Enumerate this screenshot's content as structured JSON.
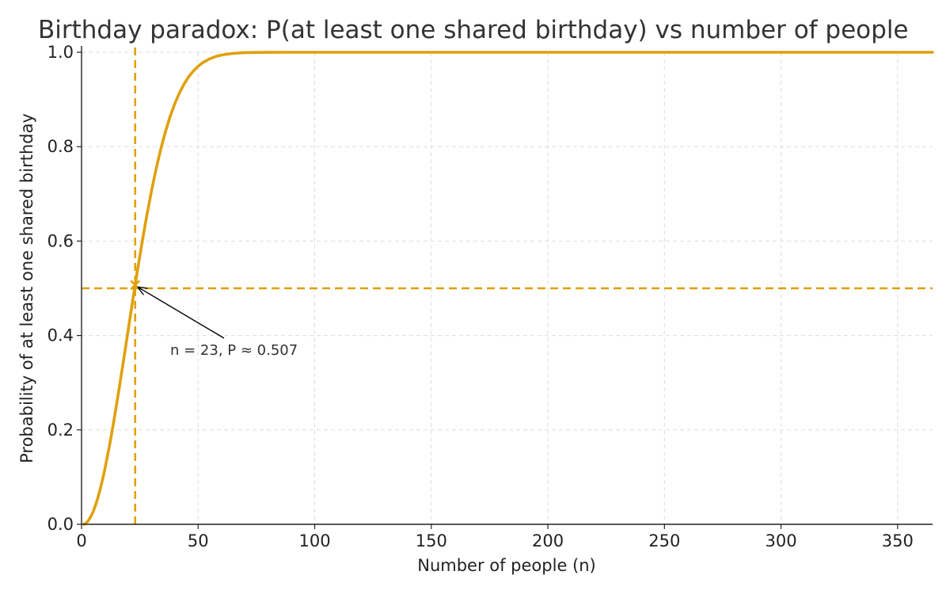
{
  "chart_data": {
    "type": "line",
    "title": "Birthday paradox: P(at least one shared birthday) vs number of people",
    "xlabel": "Number of people (n)",
    "ylabel": "Probability of at least one shared birthday",
    "xlim": [
      0,
      365
    ],
    "ylim": [
      0,
      1.0
    ],
    "x_ticks": [
      0,
      50,
      100,
      150,
      200,
      250,
      300,
      350
    ],
    "x_tick_labels": [
      "0",
      "50",
      "100",
      "150",
      "200",
      "250",
      "300",
      "350"
    ],
    "y_ticks": [
      0.0,
      0.2,
      0.4,
      0.6,
      0.8,
      1.0
    ],
    "y_tick_labels": [
      "0.0",
      "0.2",
      "0.4",
      "0.6",
      "0.8",
      "1.0"
    ],
    "grid": true,
    "series": [
      {
        "color": "#E0A00C",
        "x": [
          1,
          2,
          3,
          4,
          5,
          6,
          7,
          8,
          9,
          10,
          12,
          14,
          16,
          18,
          20,
          22,
          23,
          24,
          26,
          28,
          30,
          32,
          34,
          36,
          38,
          40,
          42,
          44,
          46,
          48,
          50,
          52,
          55,
          58,
          60,
          65,
          70,
          75,
          80,
          90,
          100,
          120,
          150,
          200,
          250,
          300,
          365
        ],
        "y": [
          0.0,
          0.0027,
          0.0082,
          0.0164,
          0.0271,
          0.0405,
          0.0562,
          0.0743,
          0.0946,
          0.1169,
          0.167,
          0.2231,
          0.2836,
          0.3469,
          0.4114,
          0.4757,
          0.5073,
          0.5383,
          0.5982,
          0.6545,
          0.7063,
          0.7533,
          0.7953,
          0.8322,
          0.8641,
          0.8912,
          0.914,
          0.9329,
          0.9483,
          0.9606,
          0.9704,
          0.978,
          0.9863,
          0.9917,
          0.9941,
          0.9977,
          0.9992,
          0.9997,
          0.99991,
          0.999994,
          0.9999997,
          1.0,
          1.0,
          1.0,
          1.0,
          1.0,
          1.0
        ]
      }
    ],
    "reference_lines": {
      "vertical_x": 23,
      "horizontal_y": 0.5,
      "color": "#E0A00C"
    },
    "highlight_point": {
      "x": 23,
      "y": 0.507
    },
    "annotation": {
      "text": "n = 23, P ≈ 0.507",
      "points_to": {
        "x": 23,
        "y": 0.507
      }
    }
  }
}
